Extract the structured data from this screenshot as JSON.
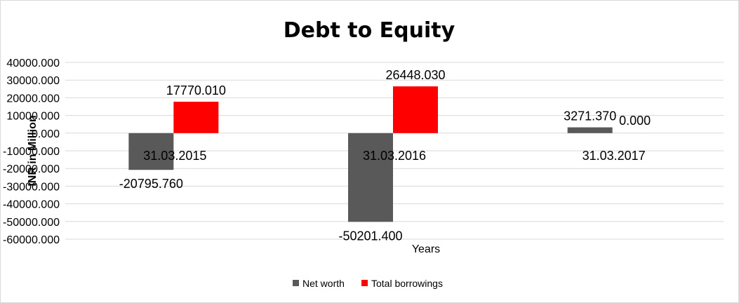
{
  "chart_data": {
    "type": "bar",
    "title": "Debt to Equity",
    "xlabel": "Years",
    "ylabel": "INR in Million",
    "ylim": [
      -60000,
      40000
    ],
    "ytick_step": 10000,
    "ytick_labels": [
      "40000.000",
      "30000.000",
      "20000.000",
      "10000.000",
      "0.000",
      "-10000.000",
      "-20000.000",
      "-30000.000",
      "-40000.000",
      "-50000.000",
      "-60000.000"
    ],
    "categories": [
      "31.03.2015",
      "31.03.2016",
      "31.03.2017"
    ],
    "series": [
      {
        "name": "Net worth",
        "color": "#595959",
        "values": [
          -20795.76,
          -50201.4,
          3271.37
        ],
        "labels": [
          "-20795.760",
          "-50201.400",
          "3271.370"
        ]
      },
      {
        "name": "Total borrowings",
        "color": "#ff0000",
        "values": [
          17770.01,
          26448.03,
          0
        ],
        "labels": [
          "17770.010",
          "26448.030",
          "0.000"
        ]
      }
    ],
    "grid": true,
    "legend": "bottom"
  }
}
